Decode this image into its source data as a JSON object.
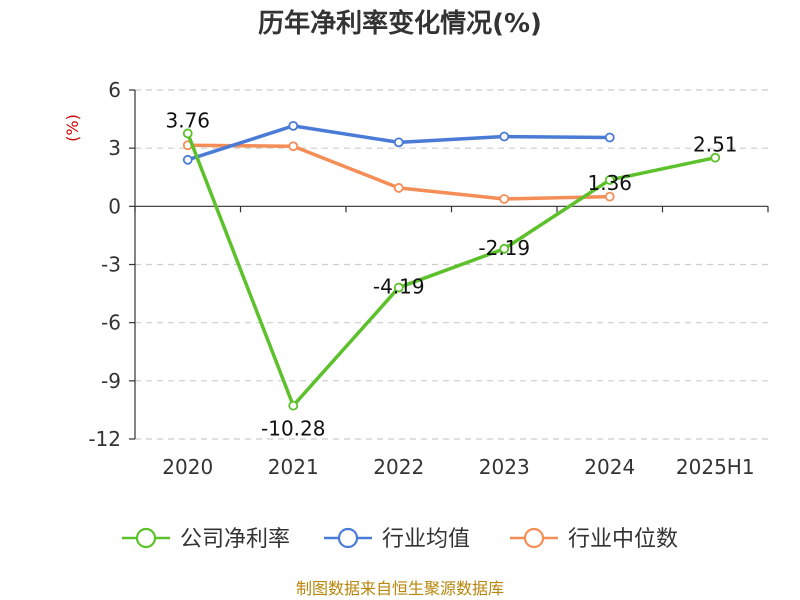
{
  "chart_data": {
    "type": "line",
    "title": "历年净利率变化情况(%)",
    "ylabel": "(%)",
    "categories": [
      "2020",
      "2021",
      "2022",
      "2023",
      "2024",
      "2025H1"
    ],
    "ylim": [
      -12,
      6
    ],
    "yticks": [
      6,
      3,
      0,
      -3,
      -6,
      -9,
      -12
    ],
    "grid": "horizontal-dashed",
    "legend_position": "bottom",
    "series": [
      {
        "name": "公司净利率",
        "color": "#5cc12a",
        "values": [
          3.76,
          -10.28,
          -4.19,
          -2.19,
          1.36,
          2.51
        ],
        "labels": [
          "3.76",
          "-10.28",
          "-4.19",
          "-2.19",
          "1.36",
          "2.51"
        ]
      },
      {
        "name": "行业均值",
        "color": "#4a7bd6",
        "values": [
          2.4,
          4.15,
          3.3,
          3.6,
          3.55,
          null
        ]
      },
      {
        "name": "行业中位数",
        "color": "#f58d57",
        "values": [
          3.15,
          3.1,
          0.95,
          0.38,
          0.5,
          null
        ]
      }
    ]
  },
  "footer": {
    "source": "制图数据来自恒生聚源数据库"
  }
}
